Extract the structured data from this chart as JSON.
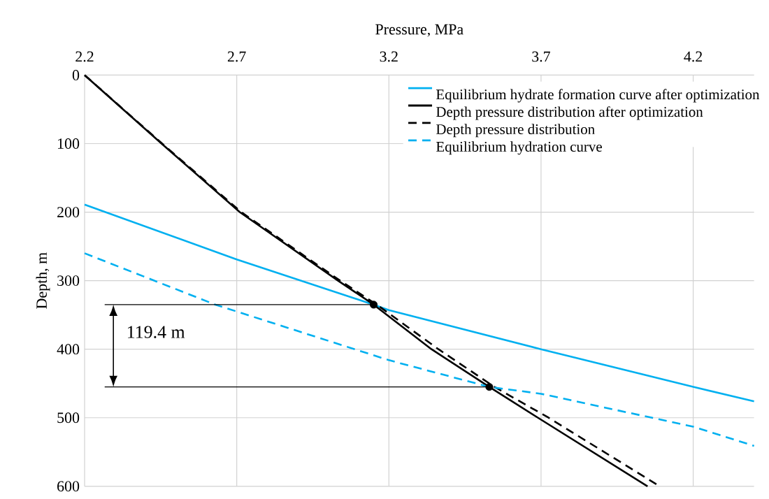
{
  "chart_data": {
    "type": "line",
    "xlabel": "Pressure, MPa",
    "ylabel": "Depth, m",
    "xlim": [
      2.2,
      4.4
    ],
    "ylim": [
      600,
      0
    ],
    "xticks": [
      2.2,
      2.7,
      3.2,
      3.7,
      4.2
    ],
    "yticks": [
      0,
      100,
      200,
      300,
      400,
      500,
      600
    ],
    "grid": true,
    "legend": "top right",
    "annotations": [
      "119.4 m"
    ],
    "ref_lines": [
      {
        "axis": "y",
        "value": 335,
        "color": "#000000"
      },
      {
        "axis": "y",
        "value": 455,
        "color": "#000000"
      }
    ],
    "series": [
      {
        "name": "Equilibrium hydrate formation curve after optimization",
        "color": "#00b0f0",
        "line_style": "solid",
        "x": [
          2.2,
          2.7,
          3.15,
          3.2,
          3.7,
          4.2,
          4.4
        ],
        "values": [
          189,
          269,
          335,
          343,
          400,
          455,
          476
        ]
      },
      {
        "name": "Depth pressure distribution after optimization",
        "color": "#000000",
        "line_style": "solid",
        "x": [
          2.2,
          2.453,
          2.71,
          3.033,
          3.15,
          3.34,
          3.53,
          3.69,
          4.05
        ],
        "values": [
          0,
          100,
          200,
          300,
          335,
          400,
          455,
          500,
          600
        ]
      },
      {
        "name": "Depth pressure distribution",
        "color": "#000000",
        "line_style": "dashed",
        "x": [
          2.2,
          2.455,
          2.715,
          3.04,
          3.16,
          3.363,
          3.547,
          3.725,
          4.09
        ],
        "values": [
          0,
          100,
          200,
          300,
          335,
          400,
          455,
          500,
          600
        ]
      },
      {
        "name": "Equilibrium hydration curve",
        "color": "#00b0f0",
        "line_style": "dashed",
        "x": [
          2.2,
          2.63,
          2.7,
          3.2,
          3.53,
          3.7,
          4.2,
          4.4
        ],
        "values": [
          260,
          335,
          345,
          416,
          455,
          465,
          513,
          541
        ]
      },
      {
        "type": "scatter",
        "marker": "circle",
        "color": "#000000",
        "x": [
          3.15,
          3.53
        ],
        "values": [
          335,
          455
        ]
      }
    ]
  }
}
